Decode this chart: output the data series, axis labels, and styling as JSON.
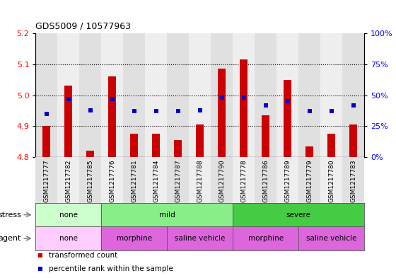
{
  "title": "GDS5009 / 10577963",
  "samples": [
    "GSM1217777",
    "GSM1217782",
    "GSM1217785",
    "GSM1217776",
    "GSM1217781",
    "GSM1217784",
    "GSM1217787",
    "GSM1217788",
    "GSM1217790",
    "GSM1217778",
    "GSM1217786",
    "GSM1217789",
    "GSM1217779",
    "GSM1217780",
    "GSM1217783"
  ],
  "transformed_count": [
    4.9,
    5.03,
    4.82,
    5.06,
    4.875,
    4.875,
    4.855,
    4.905,
    5.085,
    5.115,
    4.935,
    5.05,
    4.835,
    4.875,
    4.905
  ],
  "percentile_rank": [
    35,
    47,
    38,
    47,
    37,
    37,
    37,
    38,
    48,
    48,
    42,
    45,
    37,
    37,
    42
  ],
  "bar_bottom": 4.8,
  "ylim_left": [
    4.8,
    5.2
  ],
  "ylim_right": [
    0,
    100
  ],
  "yticks_left": [
    4.8,
    4.9,
    5.0,
    5.1,
    5.2
  ],
  "yticks_right": [
    0,
    25,
    50,
    75,
    100
  ],
  "ytick_labels_right": [
    "0%",
    "25%",
    "50%",
    "75%",
    "100%"
  ],
  "bar_color": "#cc0000",
  "dot_color": "#0000cc",
  "stress_groups": [
    {
      "label": "none",
      "start": 0,
      "end": 3,
      "color": "#ccffcc"
    },
    {
      "label": "mild",
      "start": 3,
      "end": 9,
      "color": "#88ee88"
    },
    {
      "label": "severe",
      "start": 9,
      "end": 15,
      "color": "#44cc44"
    }
  ],
  "agent_groups": [
    {
      "label": "none",
      "start": 0,
      "end": 3,
      "color": "#ffccff"
    },
    {
      "label": "morphine",
      "start": 3,
      "end": 6,
      "color": "#dd66dd"
    },
    {
      "label": "saline vehicle",
      "start": 6,
      "end": 9,
      "color": "#dd66dd"
    },
    {
      "label": "morphine",
      "start": 9,
      "end": 12,
      "color": "#dd66dd"
    },
    {
      "label": "saline vehicle",
      "start": 12,
      "end": 15,
      "color": "#dd66dd"
    }
  ],
  "dotted_lines": [
    4.9,
    5.0,
    5.1
  ],
  "legend_items": [
    {
      "color": "#cc0000",
      "label": "transformed count"
    },
    {
      "color": "#0000cc",
      "label": "percentile rank within the sample"
    }
  ]
}
